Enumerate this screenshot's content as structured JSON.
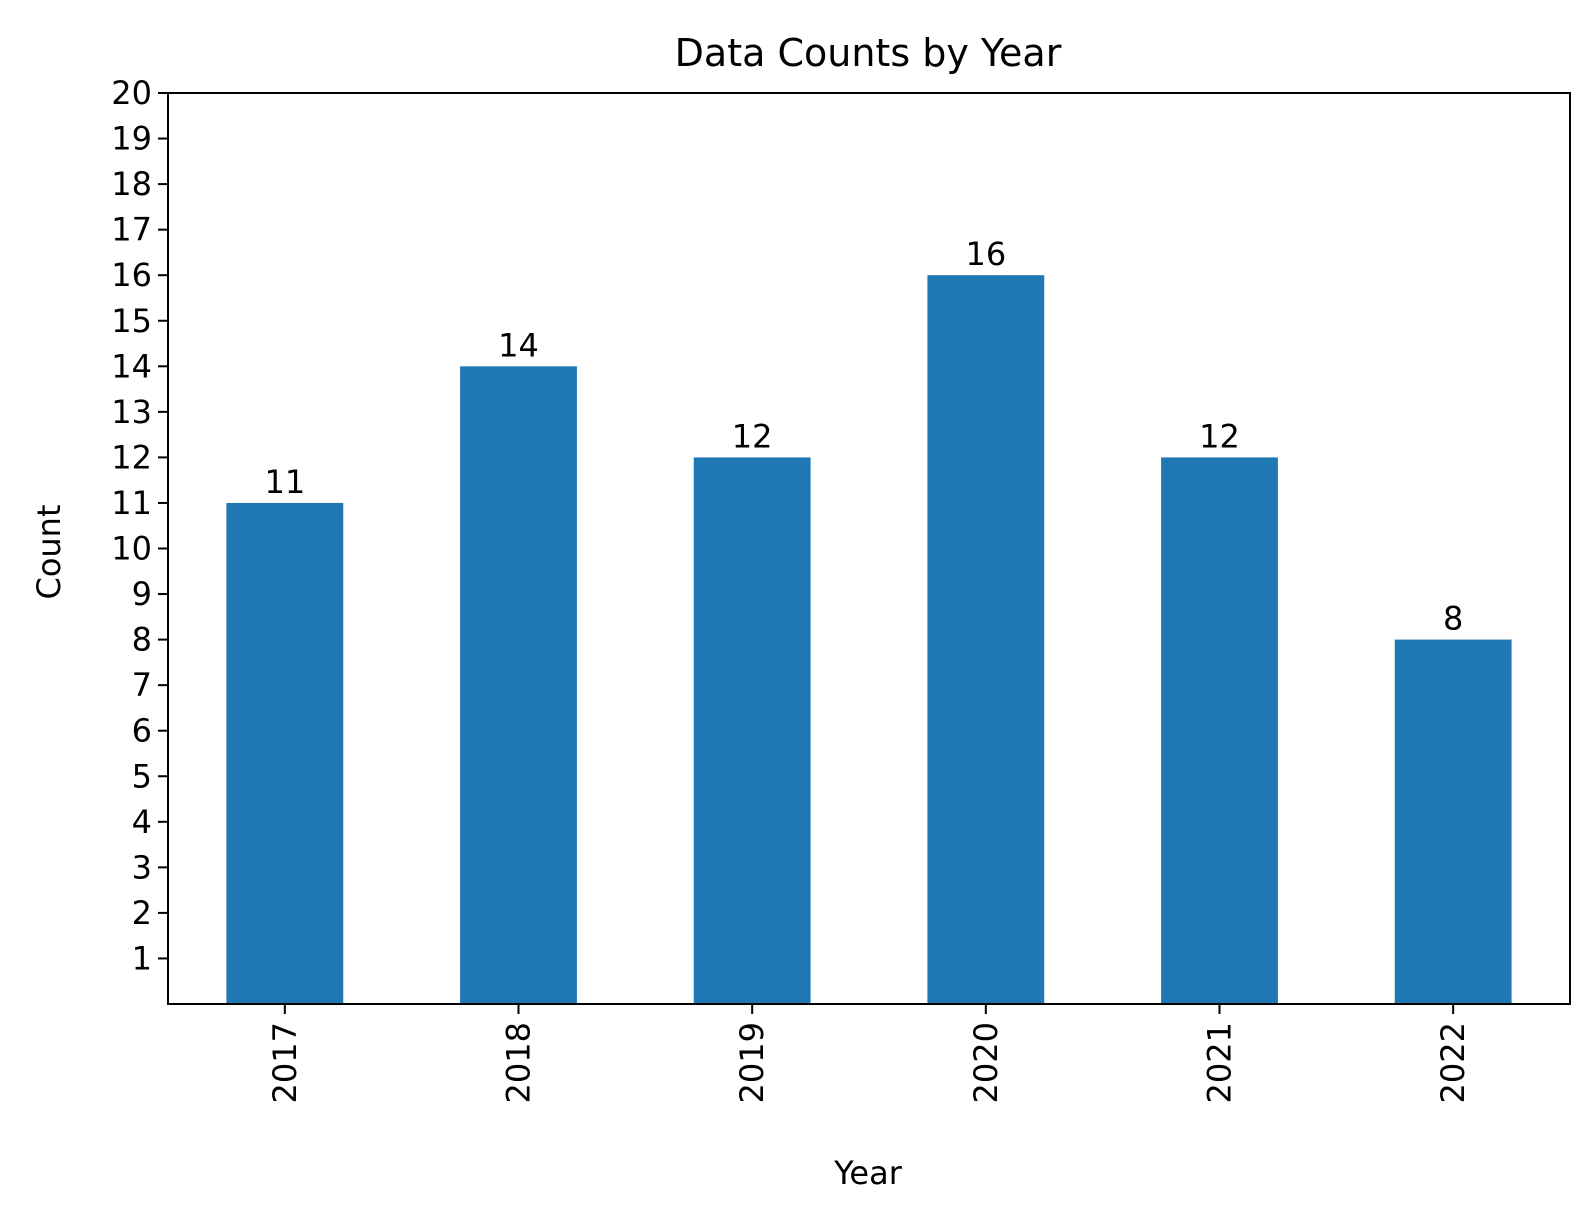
{
  "chart_data": {
    "type": "bar",
    "title": "Data Counts by Year",
    "xlabel": "Year",
    "ylabel": "Count",
    "categories": [
      "2017",
      "2018",
      "2019",
      "2020",
      "2021",
      "2022"
    ],
    "values": [
      11,
      14,
      12,
      16,
      12,
      8
    ],
    "value_labels": [
      "11",
      "14",
      "12",
      "16",
      "12",
      "8"
    ],
    "ylim": [
      0,
      20
    ],
    "yticks": [
      1,
      2,
      3,
      4,
      5,
      6,
      7,
      8,
      9,
      10,
      11,
      12,
      13,
      14,
      15,
      16,
      17,
      18,
      19,
      20
    ],
    "ytick_labels": [
      "1",
      "2",
      "3",
      "4",
      "5",
      "6",
      "7",
      "8",
      "9",
      "10",
      "11",
      "12",
      "13",
      "14",
      "15",
      "16",
      "17",
      "18",
      "19",
      "20"
    ],
    "grid": false,
    "legend": "none",
    "bar_color": "#1f77b4"
  }
}
